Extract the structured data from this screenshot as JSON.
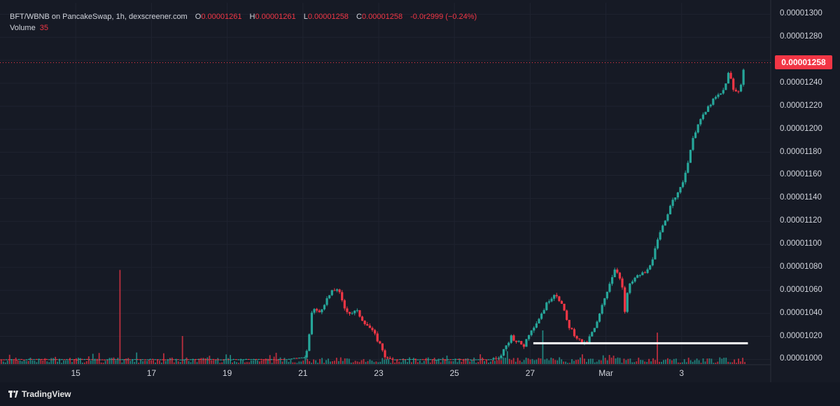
{
  "legend": {
    "symbol": "BFT/WBNB on PancakeSwap, 1h, dexscreener.com",
    "o_label": "O",
    "o_value": "0.00001261",
    "h_label": "H",
    "h_value": "0.00001261",
    "l_label": "L",
    "l_value": "0.00001258",
    "c_label": "C",
    "c_value": "0.00001258",
    "change": "-0.0r2999 (−0.24%)",
    "volume_label": "Volume",
    "volume_value": "35"
  },
  "branding": {
    "logo_text": "TradingView"
  },
  "chart_data": {
    "type": "candlestick",
    "symbol": "BFT/WBNB",
    "interval": "1h",
    "last_price": "0.00001258",
    "y_ticks": [
      "0.00001300",
      "0.00001280",
      "0.00001260",
      "0.00001240",
      "0.00001220",
      "0.00001200",
      "0.00001180",
      "0.00001160",
      "0.00001140",
      "0.00001120",
      "0.00001100",
      "0.00001080",
      "0.00001060",
      "0.00001040",
      "0.00001020",
      "0.00001000"
    ],
    "ylim": [
      9.96e-06,
      1.31e-05
    ],
    "x_ticks": [
      "15",
      "17",
      "19",
      "21",
      "23",
      "25",
      "27",
      "Mar",
      "3"
    ],
    "x_tick_index": [
      12,
      24,
      36,
      48,
      60,
      72,
      84,
      96,
      108
    ],
    "x_range": [
      0,
      122
    ],
    "price_keypoints": [
      [
        0,
        1e-05
      ],
      [
        45,
        1e-05
      ],
      [
        48.5,
        1.002e-05
      ],
      [
        49.5,
        1.045e-05
      ],
      [
        50.5,
        1.04e-05
      ],
      [
        51.5,
        1.05e-05
      ],
      [
        52.5,
        1.058e-05
      ],
      [
        53.5,
        1.062e-05
      ],
      [
        54.5,
        1.045e-05
      ],
      [
        55.5,
        1.04e-05
      ],
      [
        56.5,
        1.042e-05
      ],
      [
        57.5,
        1.034e-05
      ],
      [
        58.5,
        1.028e-05
      ],
      [
        59.5,
        1.02e-05
      ],
      [
        60.5,
        1.01e-05
      ],
      [
        61.2,
        1e-05
      ],
      [
        79,
        1e-05
      ],
      [
        80,
        1.01e-05
      ],
      [
        81,
        1.02e-05
      ],
      [
        82,
        1.015e-05
      ],
      [
        83,
        1.012e-05
      ],
      [
        84,
        1.025e-05
      ],
      [
        85,
        1.032e-05
      ],
      [
        86,
        1.042e-05
      ],
      [
        87,
        1.052e-05
      ],
      [
        88,
        1.058e-05
      ],
      [
        89,
        1.048e-05
      ],
      [
        90,
        1.03e-05
      ],
      [
        91,
        1.022e-05
      ],
      [
        92,
        1.015e-05
      ],
      [
        92.8,
        1.013e-05
      ],
      [
        93.5,
        1.02e-05
      ],
      [
        94.5,
        1.03e-05
      ],
      [
        95.5,
        1.048e-05
      ],
      [
        96.5,
        1.065e-05
      ],
      [
        97.5,
        1.08e-05
      ],
      [
        98.5,
        1.068e-05
      ],
      [
        99,
        1.04e-05
      ],
      [
        99.5,
        1.062e-05
      ],
      [
        100.5,
        1.07e-05
      ],
      [
        101.5,
        1.074e-05
      ],
      [
        102.5,
        1.076e-05
      ],
      [
        103.5,
        1.09e-05
      ],
      [
        104.5,
        1.108e-05
      ],
      [
        105.5,
        1.122e-05
      ],
      [
        106.5,
        1.14e-05
      ],
      [
        107.5,
        1.144e-05
      ],
      [
        108.5,
        1.16e-05
      ],
      [
        109.5,
        1.185e-05
      ],
      [
        110.5,
        1.205e-05
      ],
      [
        111.5,
        1.212e-05
      ],
      [
        112.5,
        1.222e-05
      ],
      [
        113.5,
        1.228e-05
      ],
      [
        114.5,
        1.232e-05
      ],
      [
        115.5,
        1.25e-05
      ],
      [
        116.3,
        1.232e-05
      ],
      [
        117.2,
        1.234e-05
      ],
      [
        118,
        1.258e-05
      ]
    ],
    "volume_spikes": [
      [
        19,
        0.84
      ],
      [
        29,
        0.25
      ],
      [
        86,
        0.3
      ],
      [
        104,
        0.28
      ]
    ],
    "horizontal_line": {
      "from_x": 84.5,
      "to_x": 118.5,
      "value": 1.014e-05,
      "color": "#ffffff"
    },
    "up_color": "#26a69a",
    "down_color": "#f23645"
  }
}
